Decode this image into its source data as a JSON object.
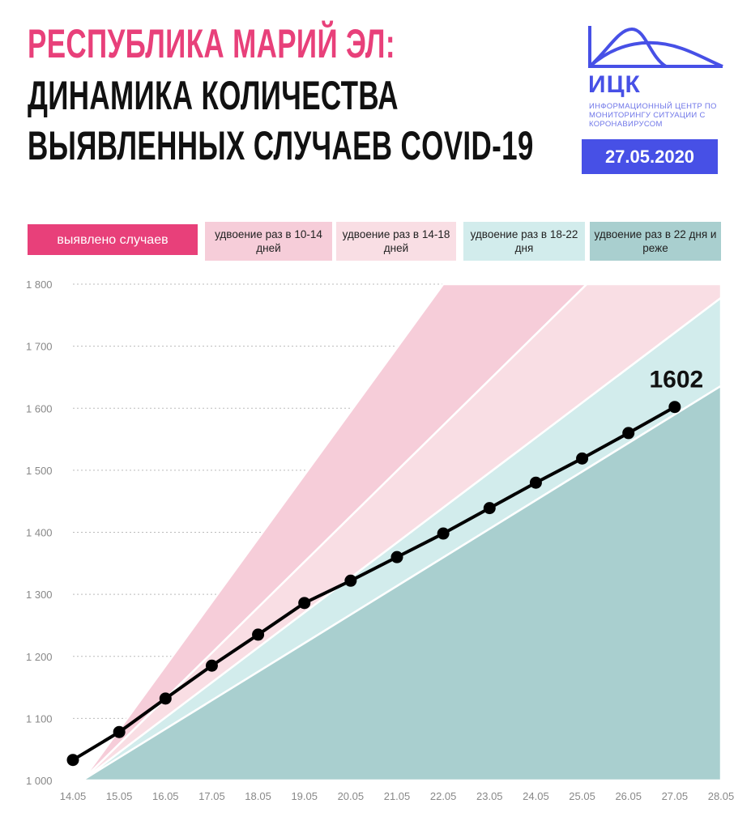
{
  "header": {
    "title_line1": "РЕСПУБЛИКА МАРИЙ ЭЛ:",
    "title_line2": "ДИНАМИКА КОЛИЧЕСТВА",
    "title_line3": "ВЫЯВЛЕННЫХ СЛУЧАЕВ COVID-19"
  },
  "logo": {
    "abbr": "ИЦК",
    "subtitle": "ИНФОРМАЦИОННЫЙ ЦЕНТР ПО МОНИТОРИНГУ СИТУАЦИИ С КОРОНАВИРУСОМ",
    "date": "27.05.2020",
    "color": "#4750e6"
  },
  "legend": [
    {
      "label": "выявлено случаев",
      "color": "#e8407a"
    },
    {
      "label": "удвоение раз в 10-14 дней",
      "color": "#f6cdd9"
    },
    {
      "label": "удвоение раз в 14-18 дней",
      "color": "#f9dee4"
    },
    {
      "label": "удвоение раз в 18-22 дня",
      "color": "#d2ecec"
    },
    {
      "label": "удвоение раз в 22 дня и реже",
      "color": "#a9cfcf"
    }
  ],
  "chart_data": {
    "type": "line",
    "title": "",
    "xlabel": "",
    "ylabel": "",
    "x_ticks": [
      "14.05",
      "15.05",
      "16.05",
      "17.05",
      "18.05",
      "19.05",
      "20.05",
      "21.05",
      "22.05",
      "23.05",
      "24.05",
      "25.05",
      "26.05",
      "27.05",
      "28.05"
    ],
    "y_ticks": [
      "1 000",
      "1 100",
      "1 200",
      "1 300",
      "1 400",
      "1 500",
      "1 600",
      "1 700",
      "1 800"
    ],
    "ylim": [
      1000,
      1800
    ],
    "xlim_day_of_may": [
      14,
      28
    ],
    "grid": "horizontal dotted",
    "series": [
      {
        "dates": [
          "14.05",
          "15.05",
          "16.05",
          "17.05",
          "18.05",
          "19.05",
          "20.05",
          "21.05",
          "22.05",
          "23.05",
          "24.05",
          "25.05",
          "26.05",
          "27.05"
        ],
        "values": [
          1033,
          1078,
          1132,
          1185,
          1235,
          1286,
          1322,
          1360,
          1398,
          1439,
          1480,
          1519,
          1560,
          1602
        ],
        "color": "#000000"
      }
    ],
    "last_value_label": "1602",
    "bands": {
      "origin": [
        14.2,
        1000
      ],
      "items": [
        {
          "legend": "удвоение раз в 10-14 дней",
          "color": "#f6cdd9",
          "edges": [
            [
              22.0,
              1800
            ],
            [
              25.1,
              1800
            ]
          ]
        },
        {
          "legend": "удвоение раз в 14-18 дней",
          "color": "#f9dee4",
          "edges": [
            [
              25.1,
              1800
            ],
            [
              28,
              1800
            ],
            [
              28,
              1778
            ]
          ]
        },
        {
          "legend": "удвоение раз в 18-22 дня",
          "color": "#d2ecec",
          "edges": [
            [
              28,
              1778
            ],
            [
              28,
              1636
            ]
          ]
        },
        {
          "legend": "удвоение раз в 22 дня и реже",
          "color": "#a9cfcf",
          "edges": [
            [
              28,
              1636
            ],
            [
              28,
              1000
            ]
          ]
        }
      ]
    }
  }
}
